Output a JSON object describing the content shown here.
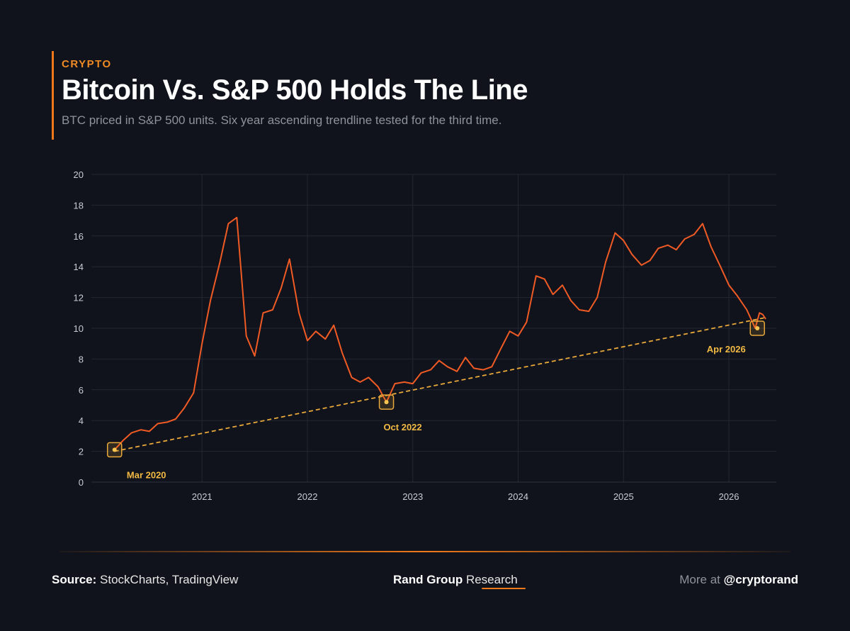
{
  "header": {
    "kicker": "CRYPTO",
    "title": "Bitcoin Vs. S&P 500 Holds The Line",
    "subtitle": "BTC priced in S&P 500 units. Six year ascending trendline tested for the third time."
  },
  "footer": {
    "source_label": "Source:",
    "source_value": "StockCharts, TradingView",
    "brand_bold": "Rand Group",
    "brand_regular": "Research",
    "more_label": "More at",
    "handle": "@cryptorand"
  },
  "colors": {
    "background": "#10131b",
    "line": "#f05a24",
    "trend": "#e8a83a",
    "accent": "#f07a1a"
  },
  "chart_data": {
    "type": "line",
    "title": "Bitcoin Vs. S&P 500 Holds The Line",
    "xlabel": "",
    "ylabel": "",
    "ylim": [
      0,
      20
    ],
    "xlim": [
      2019.95,
      2026.45
    ],
    "yticks": [
      0,
      2,
      4,
      6,
      8,
      10,
      12,
      14,
      16,
      18,
      20
    ],
    "xticks": [
      2021,
      2022,
      2023,
      2024,
      2025,
      2026
    ],
    "grid": true,
    "series": [
      {
        "points": [
          [
            2020.17,
            2.1
          ],
          [
            2020.25,
            2.7
          ],
          [
            2020.33,
            3.2
          ],
          [
            2020.42,
            3.4
          ],
          [
            2020.5,
            3.3
          ],
          [
            2020.58,
            3.8
          ],
          [
            2020.67,
            3.9
          ],
          [
            2020.75,
            4.1
          ],
          [
            2020.83,
            4.8
          ],
          [
            2020.92,
            5.8
          ],
          [
            2021.0,
            9.0
          ],
          [
            2021.08,
            11.8
          ],
          [
            2021.17,
            14.3
          ],
          [
            2021.25,
            16.8
          ],
          [
            2021.33,
            17.2
          ],
          [
            2021.42,
            9.5
          ],
          [
            2021.5,
            8.2
          ],
          [
            2021.58,
            11.0
          ],
          [
            2021.67,
            11.2
          ],
          [
            2021.75,
            12.6
          ],
          [
            2021.83,
            14.5
          ],
          [
            2021.92,
            11.0
          ],
          [
            2022.0,
            9.2
          ],
          [
            2022.08,
            9.8
          ],
          [
            2022.17,
            9.3
          ],
          [
            2022.25,
            10.2
          ],
          [
            2022.33,
            8.4
          ],
          [
            2022.42,
            6.8
          ],
          [
            2022.5,
            6.5
          ],
          [
            2022.58,
            6.8
          ],
          [
            2022.67,
            6.2
          ],
          [
            2022.75,
            5.2
          ],
          [
            2022.83,
            6.4
          ],
          [
            2022.92,
            6.5
          ],
          [
            2023.0,
            6.4
          ],
          [
            2023.08,
            7.1
          ],
          [
            2023.17,
            7.3
          ],
          [
            2023.25,
            7.9
          ],
          [
            2023.33,
            7.5
          ],
          [
            2023.42,
            7.2
          ],
          [
            2023.5,
            8.1
          ],
          [
            2023.58,
            7.4
          ],
          [
            2023.67,
            7.3
          ],
          [
            2023.75,
            7.5
          ],
          [
            2023.83,
            8.6
          ],
          [
            2023.92,
            9.8
          ],
          [
            2024.0,
            9.5
          ],
          [
            2024.08,
            10.4
          ],
          [
            2024.17,
            13.4
          ],
          [
            2024.25,
            13.2
          ],
          [
            2024.33,
            12.2
          ],
          [
            2024.42,
            12.8
          ],
          [
            2024.5,
            11.8
          ],
          [
            2024.58,
            11.2
          ],
          [
            2024.67,
            11.1
          ],
          [
            2024.75,
            12.0
          ],
          [
            2024.83,
            14.3
          ],
          [
            2024.92,
            16.2
          ],
          [
            2025.0,
            15.7
          ],
          [
            2025.08,
            14.8
          ],
          [
            2025.17,
            14.1
          ],
          [
            2025.25,
            14.4
          ],
          [
            2025.33,
            15.2
          ],
          [
            2025.42,
            15.4
          ],
          [
            2025.5,
            15.1
          ],
          [
            2025.58,
            15.8
          ],
          [
            2025.67,
            16.1
          ],
          [
            2025.75,
            16.8
          ],
          [
            2025.83,
            15.3
          ],
          [
            2025.92,
            14.0
          ],
          [
            2026.0,
            12.8
          ],
          [
            2026.08,
            12.1
          ],
          [
            2026.17,
            11.2
          ],
          [
            2026.25,
            10.0
          ],
          [
            2026.29,
            11.0
          ],
          [
            2026.32,
            10.9
          ],
          [
            2026.35,
            10.6
          ]
        ]
      }
    ],
    "trendline": {
      "from": [
        2020.17,
        2.0
      ],
      "to": [
        2026.35,
        10.7
      ]
    },
    "annotations": [
      {
        "label": "Mar 2020",
        "x": 2020.17,
        "y": 2.1
      },
      {
        "label": "Oct 2022",
        "x": 2022.75,
        "y": 5.2
      },
      {
        "label": "Apr 2026",
        "x": 2026.27,
        "y": 10.0
      }
    ]
  }
}
